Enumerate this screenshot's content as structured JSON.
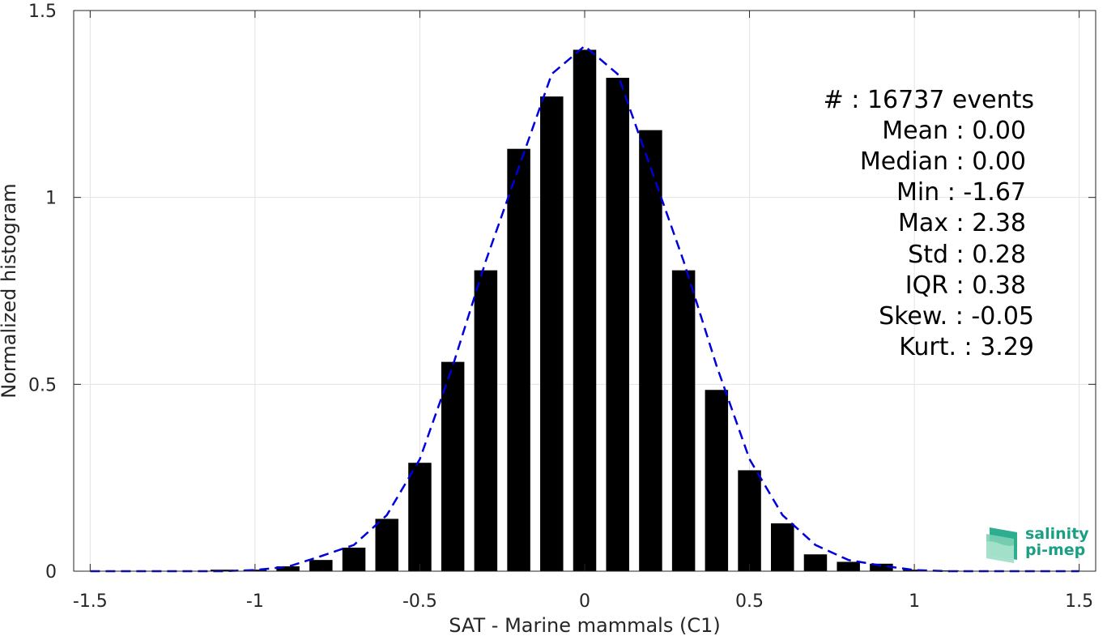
{
  "chart_data": {
    "type": "bar",
    "xlabel": "SAT - Marine mammals (C1)",
    "ylabel": "Normalized histogram",
    "xlim": [
      -1.55,
      1.55
    ],
    "ylim": [
      0,
      1.5
    ],
    "xticks": [
      -1.5,
      -1,
      -0.5,
      0,
      0.5,
      1,
      1.5
    ],
    "xtick_labels": [
      "-1.5",
      "-1",
      "-0.5",
      "0",
      "0.5",
      "1",
      "1.5"
    ],
    "yticks": [
      0,
      0.5,
      1,
      1.5
    ],
    "ytick_labels": [
      "0",
      "0.5",
      "1",
      "1.5"
    ],
    "grid": true,
    "bar_color": "#000000",
    "bar_width": 0.07,
    "bins": {
      "centers": [
        -1.5,
        -1.4,
        -1.3,
        -1.2,
        -1.1,
        -1.0,
        -0.9,
        -0.8,
        -0.7,
        -0.6,
        -0.5,
        -0.4,
        -0.3,
        -0.2,
        -0.1,
        0.0,
        0.1,
        0.2,
        0.3,
        0.4,
        0.5,
        0.6,
        0.7,
        0.8,
        0.9,
        1.0,
        1.1,
        1.2,
        1.3,
        1.4,
        1.5
      ],
      "values": [
        0.0,
        0.0,
        0.0,
        0.0,
        0.004,
        0.004,
        0.013,
        0.03,
        0.063,
        0.14,
        0.29,
        0.56,
        0.805,
        1.13,
        1.27,
        1.395,
        1.32,
        1.18,
        0.805,
        0.485,
        0.27,
        0.128,
        0.045,
        0.025,
        0.02,
        0.004,
        0.002,
        0.0,
        0.0,
        0.0,
        0.0
      ]
    },
    "fit_curve": {
      "color": "#0000dd",
      "style": "dashed",
      "x": [
        -1.5,
        -1.4,
        -1.3,
        -1.2,
        -1.1,
        -1.0,
        -0.9,
        -0.8,
        -0.7,
        -0.6,
        -0.5,
        -0.4,
        -0.3,
        -0.2,
        -0.1,
        0.0,
        0.1,
        0.2,
        0.3,
        0.4,
        0.5,
        0.6,
        0.7,
        0.8,
        0.9,
        1.0,
        1.1,
        1.2,
        1.3,
        1.4,
        1.5
      ],
      "y": [
        0.0,
        0.0,
        0.0,
        0.0,
        0.0,
        0.003,
        0.012,
        0.04,
        0.07,
        0.15,
        0.3,
        0.55,
        0.83,
        1.08,
        1.33,
        1.405,
        1.33,
        1.08,
        0.83,
        0.55,
        0.3,
        0.15,
        0.07,
        0.03,
        0.015,
        0.003,
        0.0,
        0.0,
        0.0,
        0.0,
        0.0
      ]
    },
    "stats": [
      "#  : 16737 events",
      "Mean : 0.00",
      "Median : 0.00",
      "Min : -1.67",
      "Max : 2.38",
      "Std : 0.28",
      "IQR : 0.38",
      "Skew. : -0.05",
      "Kurt. : 3.29"
    ]
  },
  "logo": {
    "line1": "salinity",
    "line2": "pi-mep",
    "color": "#1a9f84"
  }
}
